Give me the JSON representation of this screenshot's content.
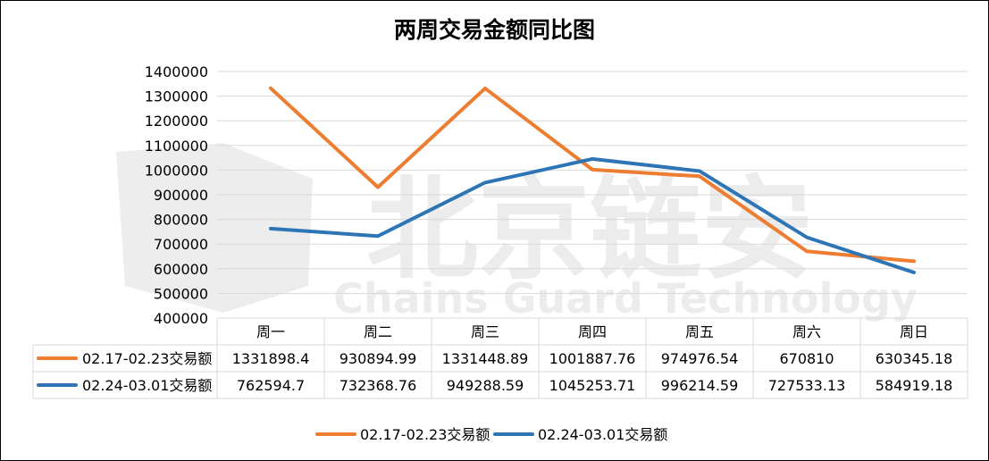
{
  "chart_data": {
    "type": "line",
    "title": "两周交易金额同比图",
    "categories": [
      "周一",
      "周二",
      "周三",
      "周四",
      "周五",
      "周六",
      "周日"
    ],
    "series": [
      {
        "name": "02.17-02.23交易额",
        "color": "#ED7D31",
        "values": [
          1331898.4,
          930894.99,
          1331448.89,
          1001887.76,
          974976.54,
          670810,
          630345.18
        ],
        "labels": [
          "1331898.4",
          "930894.99",
          "1331448.89",
          "1001887.76",
          "974976.54",
          "670810",
          "630345.18"
        ]
      },
      {
        "name": "02.24-03.01交易额",
        "color": "#2E75B6",
        "values": [
          762594.7,
          732368.76,
          949288.59,
          1045253.71,
          996214.59,
          727533.13,
          584919.18
        ],
        "labels": [
          "762594.7",
          "732368.76",
          "949288.59",
          "1045253.71",
          "996214.59",
          "727533.13",
          "584919.18"
        ]
      }
    ],
    "ylim": [
      400000,
      1400000
    ],
    "yticks": [
      "400000",
      "500000",
      "600000",
      "700000",
      "800000",
      "900000",
      "1000000",
      "1100000",
      "1200000",
      "1300000",
      "1400000"
    ],
    "grid": true,
    "legend": "bottom",
    "data_table": true
  },
  "watermark": {
    "cn": "北京链安",
    "en": "Chains Guard Technology"
  }
}
